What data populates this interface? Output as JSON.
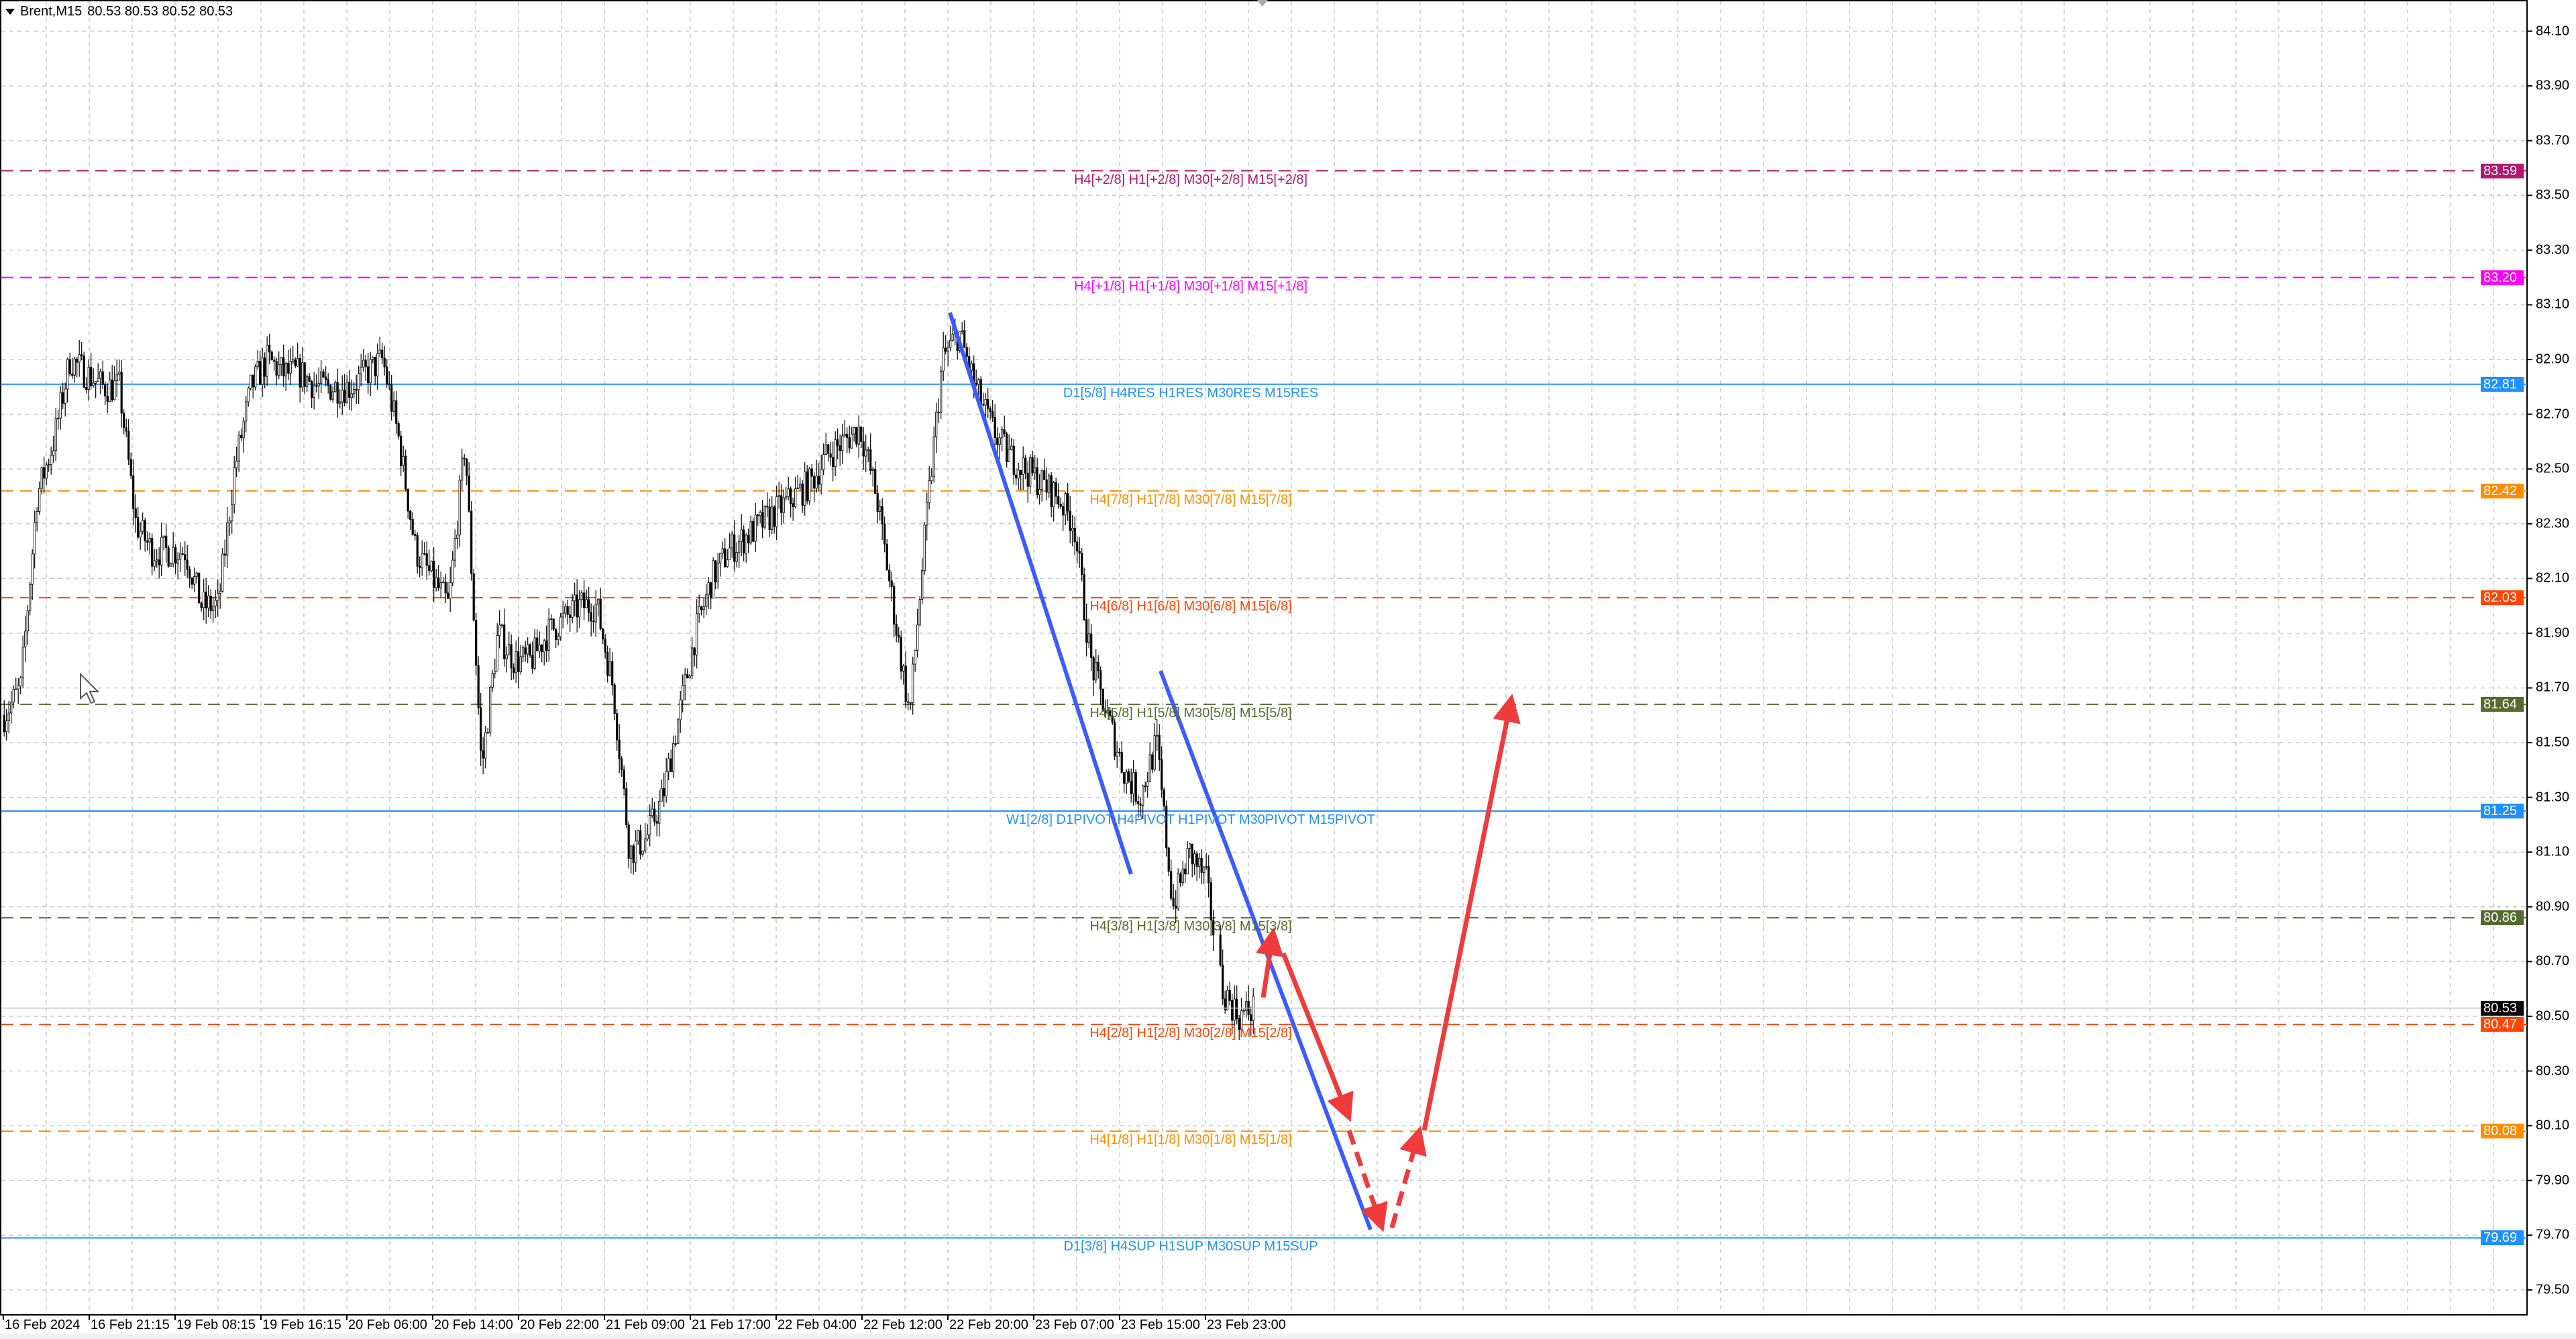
{
  "header": {
    "symbol": "Brent,M15",
    "ohlc": "80.53 80.53 80.52 80.53"
  },
  "colors": {
    "bull_candle": "#ffffff",
    "bear_candle": "#000000",
    "channel": "#3b5bff",
    "forecast_arrow": "#ef3b3b",
    "grid": "#c8c8c8"
  },
  "chart_data": {
    "type": "candlestick",
    "symbol": "Brent",
    "timeframe": "M15",
    "ylim": [
      79.45,
      84.2
    ],
    "price_ticks": [
      "84.10",
      "83.90",
      "83.70",
      "83.50",
      "83.30",
      "83.10",
      "82.90",
      "82.70",
      "82.50",
      "82.30",
      "82.10",
      "81.90",
      "81.70",
      "81.50",
      "81.30",
      "81.10",
      "80.90",
      "80.70",
      "80.50",
      "80.30",
      "80.10",
      "79.90",
      "79.70",
      "79.50"
    ],
    "time_ticks": [
      "16 Feb 2024",
      "16 Feb 21:15",
      "19 Feb 08:15",
      "19 Feb 16:15",
      "20 Feb 06:00",
      "20 Feb 14:00",
      "20 Feb 22:00",
      "21 Feb 09:00",
      "21 Feb 17:00",
      "22 Feb 04:00",
      "22 Feb 12:00",
      "22 Feb 20:00",
      "23 Feb 07:00",
      "23 Feb 15:00",
      "23 Feb 23:00"
    ],
    "approx_close_path": [
      81.6,
      81.7,
      82.4,
      82.6,
      82.9,
      82.85,
      82.8,
      82.8,
      82.3,
      82.2,
      82.2,
      82.2,
      82.0,
      82.0,
      82.5,
      82.8,
      82.9,
      82.85,
      82.85,
      82.8,
      82.8,
      82.8,
      82.85,
      82.9,
      82.6,
      82.2,
      82.1,
      82.0,
      82.6,
      81.4,
      81.9,
      81.8,
      81.8,
      81.9,
      81.95,
      82.0,
      82.0,
      81.7,
      81.1,
      81.15,
      81.3,
      81.6,
      81.9,
      82.1,
      82.2,
      82.25,
      82.3,
      82.35,
      82.4,
      82.45,
      82.55,
      82.6,
      82.65,
      82.4,
      82.0,
      81.6,
      82.3,
      82.9,
      83.0,
      82.8,
      82.65,
      82.55,
      82.5,
      82.45,
      82.4,
      82.3,
      81.8,
      81.6,
      81.4,
      81.3,
      81.5,
      80.9,
      81.1,
      81.0,
      80.6,
      80.5,
      80.53
    ],
    "current_price": {
      "value": "80.53",
      "color": "#000000"
    },
    "levels": [
      {
        "price": 83.59,
        "badge": "83.59",
        "color": "#b5166e",
        "style": "dashed",
        "label": "H4[+2/8] H1[+2/8] M30[+2/8] M15[+2/8]"
      },
      {
        "price": 83.2,
        "badge": "83.20",
        "color": "#ff00ff",
        "style": "dashed",
        "label": "H4[+1/8] H1[+1/8] M30[+1/8] M15[+1/8]"
      },
      {
        "price": 82.81,
        "badge": "82.81",
        "color": "#1e90ff",
        "style": "solid",
        "label": "D1[5/8] H4RES H1RES M30RES M15RES"
      },
      {
        "price": 82.42,
        "badge": "82.42",
        "color": "#ff8c00",
        "style": "dashed",
        "label": "H4[7/8] H1[7/8] M30[7/8] M15[7/8]"
      },
      {
        "price": 82.03,
        "badge": "82.03",
        "color": "#ff4500",
        "style": "dashed",
        "label": "H4[6/8] H1[6/8] M30[6/8] M15[6/8]"
      },
      {
        "price": 81.64,
        "badge": "81.64",
        "color": "#556b2f",
        "style": "dashed",
        "label": "H4[5/8] H1[5/8] M30[5/8] M15[5/8]"
      },
      {
        "price": 81.25,
        "badge": "81.25",
        "color": "#1e90ff",
        "style": "solid",
        "label": "W1[2/8] D1PIVOT H4PIVOT H1PIVOT M30PIVOT M15PIVOT"
      },
      {
        "price": 80.86,
        "badge": "80.86",
        "color": "#556b2f",
        "style": "dashed",
        "label": "H4[3/8] H1[3/8] M30[3/8] M15[3/8]"
      },
      {
        "price": 80.47,
        "badge": "80.47",
        "color": "#ff4500",
        "style": "dashed",
        "label": "H4[2/8] H1[2/8] M30[2/8] M15[2/8]"
      },
      {
        "price": 80.08,
        "badge": "80.08",
        "color": "#ff8c00",
        "style": "dashed",
        "label": "H4[1/8] H1[1/8] M30[1/8] M15[1/8]"
      },
      {
        "price": 79.69,
        "badge": "79.69",
        "color": "#1e90ff",
        "style": "solid",
        "label": "D1[3/8] H4SUP H1SUP M30SUP M15SUP"
      }
    ]
  }
}
